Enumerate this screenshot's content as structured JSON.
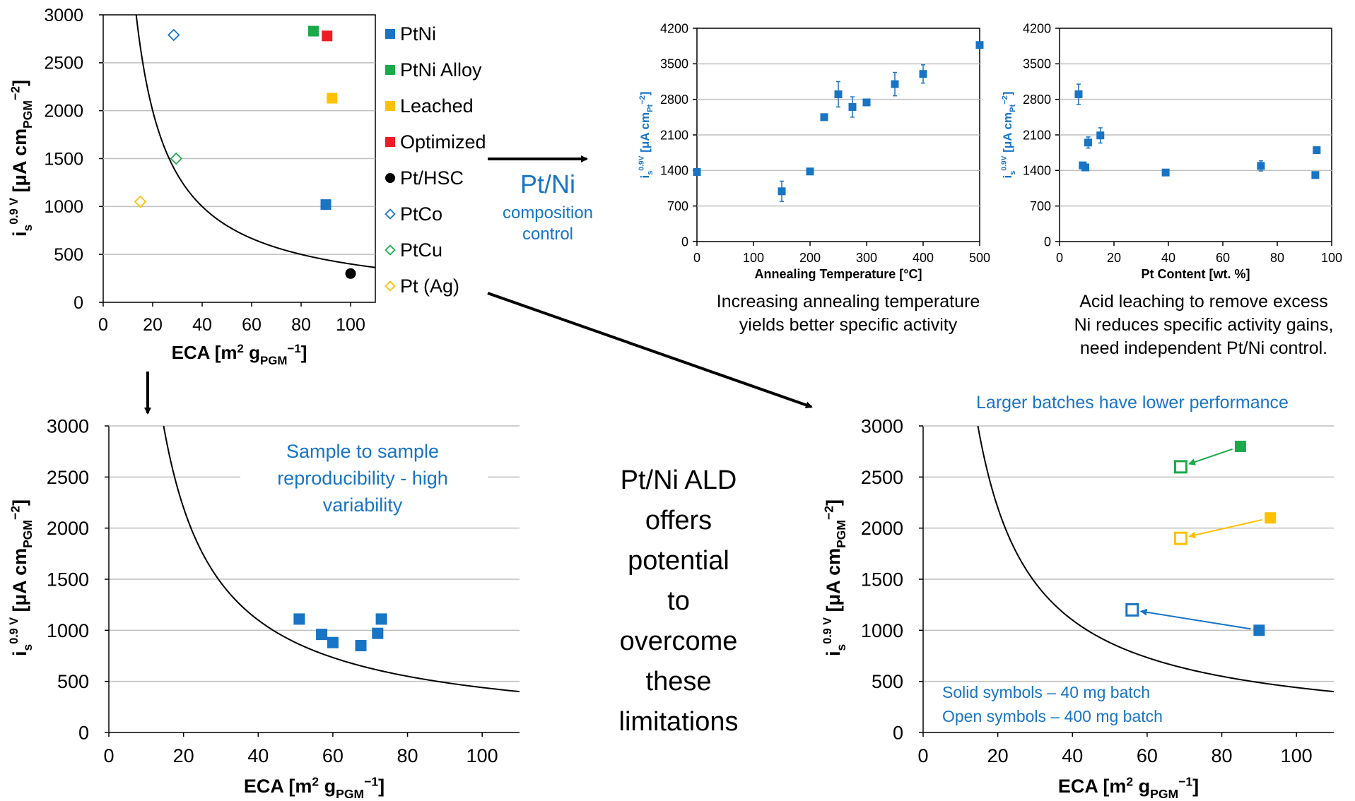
{
  "colors": {
    "ptni": "#1874C4",
    "alloy": "#1BAA4A",
    "leached": "#FFC000",
    "optimized": "#EE1C24",
    "hsc": "#000000",
    "ptco": "#1874C4",
    "ptcu": "#1BAA4A",
    "ptag": "#FFC000",
    "annotation": "#1874C4",
    "grid": "#BFBFBF",
    "curve": "#000000"
  },
  "flow": {
    "arrow_label": "Pt/Ni",
    "arrow_sublabel_1": "composition",
    "arrow_sublabel_2": "control",
    "ald_text": [
      "Pt/Ni ALD",
      "offers",
      "potential",
      "to",
      "overcome",
      "these",
      "limitations"
    ]
  },
  "chart_data": [
    {
      "id": "overview",
      "type": "scatter",
      "xlabel": "ECA [m² g_PGM⁻¹]",
      "ylabel": "i_s^0.9 V [μA cm_PGM⁻²]",
      "xlim": [
        0,
        110
      ],
      "ylim": [
        0,
        3000
      ],
      "xticks": [
        0,
        20,
        40,
        60,
        80,
        100
      ],
      "yticks": [
        0,
        500,
        1000,
        1500,
        2000,
        2500,
        3000
      ],
      "grid": "horizontal",
      "legend": "right",
      "curve": {
        "type": "y = k/x",
        "k": 40000
      },
      "series": [
        {
          "name": "PtNi",
          "marker": "square-filled",
          "color": "#1874C4",
          "points": [
            [
              90,
              1020
            ]
          ]
        },
        {
          "name": "PtNi Alloy",
          "marker": "square-filled",
          "color": "#1BAA4A",
          "points": [
            [
              85,
              2830
            ]
          ]
        },
        {
          "name": "Leached",
          "marker": "square-filled",
          "color": "#FFC000",
          "points": [
            [
              92.5,
              2130
            ]
          ]
        },
        {
          "name": "Optimized",
          "marker": "square-filled",
          "color": "#EE1C24",
          "points": [
            [
              90.5,
              2780
            ]
          ]
        },
        {
          "name": "Pt/HSC",
          "marker": "circle-filled",
          "color": "#000000",
          "points": [
            [
              100,
              300
            ]
          ]
        },
        {
          "name": "PtCo",
          "marker": "diamond-open",
          "color": "#1874C4",
          "points": [
            [
              28.5,
              2790
            ]
          ]
        },
        {
          "name": "PtCu",
          "marker": "diamond-open",
          "color": "#1BAA4A",
          "points": [
            [
              29.5,
              1500
            ]
          ]
        },
        {
          "name": "Pt (Ag)",
          "marker": "diamond-open",
          "color": "#FFC000",
          "points": [
            [
              15,
              1050
            ]
          ]
        }
      ]
    },
    {
      "id": "annealing",
      "type": "scatter",
      "xlabel": "Annealing Temperature [°C]",
      "ylabel": "i_s^0.9V [μA cm_Pt⁻²]",
      "xlim": [
        0,
        500
      ],
      "ylim": [
        0,
        4200
      ],
      "xticks": [
        0,
        100,
        200,
        300,
        400,
        500
      ],
      "yticks": [
        0,
        700,
        1400,
        2100,
        2800,
        3500,
        4200
      ],
      "grid": "horizontal",
      "caption": [
        "Increasing annealing temperature",
        "yields better specific activity"
      ],
      "points": [
        {
          "x": 0,
          "y": 1370,
          "err": 0
        },
        {
          "x": 150,
          "y": 990,
          "err": 200
        },
        {
          "x": 200,
          "y": 1380,
          "err": 0
        },
        {
          "x": 225,
          "y": 2450,
          "err": 0
        },
        {
          "x": 250,
          "y": 2900,
          "err": 250
        },
        {
          "x": 275,
          "y": 2650,
          "err": 200
        },
        {
          "x": 300,
          "y": 2740,
          "err": 0
        },
        {
          "x": 350,
          "y": 3100,
          "err": 230
        },
        {
          "x": 400,
          "y": 3300,
          "err": 180
        },
        {
          "x": 500,
          "y": 3870,
          "err": 0
        }
      ]
    },
    {
      "id": "ptcontent",
      "type": "scatter",
      "xlabel": "Pt Content [wt. %]",
      "ylabel": "i_s^0.9V [μA cm_Pt⁻²]",
      "xlim": [
        0,
        100
      ],
      "ylim": [
        0,
        4200
      ],
      "xticks": [
        0,
        20,
        40,
        60,
        80,
        100
      ],
      "yticks": [
        0,
        700,
        1400,
        2100,
        2800,
        3500,
        4200
      ],
      "grid": "horizontal",
      "caption": [
        "Acid leaching to remove excess",
        "Ni reduces specific activity gains,",
        "need independent Pt/Ni control."
      ],
      "points": [
        {
          "x": 7,
          "y": 2900,
          "err": 200
        },
        {
          "x": 8.5,
          "y": 1500,
          "err": 0
        },
        {
          "x": 9.5,
          "y": 1460,
          "err": 0
        },
        {
          "x": 10.5,
          "y": 1950,
          "err": 110
        },
        {
          "x": 15,
          "y": 2090,
          "err": 150
        },
        {
          "x": 39,
          "y": 1360,
          "err": 0
        },
        {
          "x": 74,
          "y": 1490,
          "err": 100
        },
        {
          "x": 94.5,
          "y": 1800,
          "err": 0
        },
        {
          "x": 94,
          "y": 1310,
          "err": 0
        }
      ]
    },
    {
      "id": "reproducibility",
      "type": "scatter",
      "xlabel": "ECA [m² g_PGM⁻¹]",
      "ylabel": "i_s^0.9 V [μA cm_PGM⁻²]",
      "xlim": [
        0,
        110
      ],
      "ylim": [
        0,
        3000
      ],
      "xticks": [
        0,
        20,
        40,
        60,
        80,
        100
      ],
      "yticks": [
        0,
        500,
        1000,
        1500,
        2000,
        2500,
        3000
      ],
      "grid": "horizontal",
      "curve": {
        "type": "y = k/x",
        "k": 44000
      },
      "annotation": [
        "Sample to sample",
        "reproducibility - high",
        "variability"
      ],
      "points": [
        [
          51,
          1110
        ],
        [
          57,
          960
        ],
        [
          60,
          880
        ],
        [
          67.5,
          850
        ],
        [
          72,
          970
        ],
        [
          73,
          1110
        ]
      ]
    },
    {
      "id": "batchsize",
      "type": "scatter",
      "xlabel": "ECA [m² g_PGM⁻¹]",
      "ylabel": "i_s^0.9 V [μA cm_PGM⁻²]",
      "xlim": [
        0,
        110
      ],
      "ylim": [
        0,
        3000
      ],
      "xticks": [
        0,
        20,
        40,
        60,
        80,
        100
      ],
      "yticks": [
        0,
        500,
        1000,
        1500,
        2000,
        2500,
        3000
      ],
      "grid": "horizontal",
      "curve": {
        "type": "y = k/x",
        "k": 44000
      },
      "title": "Larger batches have lower performance",
      "notes": [
        "Solid symbols – 40 mg batch",
        "Open symbols – 400 mg batch"
      ],
      "pairs": [
        {
          "color": "#1BAA4A",
          "solid": [
            85,
            2800
          ],
          "open": [
            69,
            2600
          ]
        },
        {
          "color": "#FFC000",
          "solid": [
            93,
            2100
          ],
          "open": [
            69,
            1900
          ]
        },
        {
          "color": "#1874C4",
          "solid": [
            90,
            1000
          ],
          "open": [
            56,
            1200
          ]
        }
      ]
    }
  ]
}
